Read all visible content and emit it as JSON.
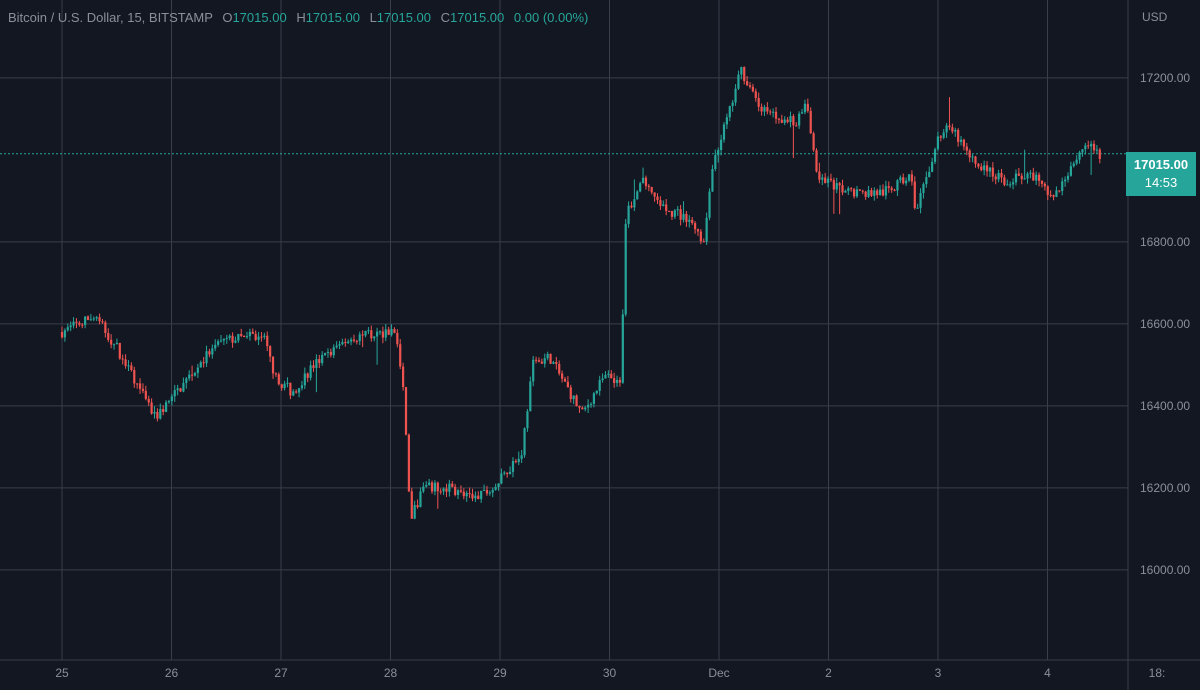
{
  "legend": {
    "symbol": "Bitcoin / U.S. Dollar, 15, BITSTAMP",
    "open_label": "O",
    "open": "17015.00",
    "high_label": "H",
    "high": "17015.00",
    "low_label": "L",
    "low": "17015.00",
    "close_label": "C",
    "close": "17015.00",
    "change": "0.00 (0.00%)"
  },
  "currency": "USD",
  "last_price": {
    "value": "17015.00",
    "countdown": "14:53"
  },
  "colors": {
    "background": "#131722",
    "grid": "#3a3e4a",
    "up": "#26a69a",
    "down": "#ef5350",
    "axis_text": "#8a8f9c",
    "price_tag": "#26a69a"
  },
  "chart_data": {
    "type": "candlestick",
    "x_ticks": [
      "25",
      "26",
      "27",
      "28",
      "29",
      "30",
      "Dec",
      "2",
      "3",
      "4",
      "18:"
    ],
    "y_ticks": [
      "17200.00",
      "16800.00",
      "16600.00",
      "16400.00",
      "16200.00",
      "16000.00"
    ],
    "ylim": [
      15780,
      17390
    ],
    "grid": true,
    "last_price_line": 17015,
    "anchors": [
      [
        0,
        16580
      ],
      [
        0.3,
        16620
      ],
      [
        0.5,
        16540
      ],
      [
        0.85,
        16370
      ],
      [
        1.1,
        16450
      ],
      [
        1.3,
        16520
      ],
      [
        1.5,
        16560
      ],
      [
        1.75,
        16570
      ],
      [
        1.85,
        16560
      ],
      [
        1.95,
        16470
      ],
      [
        2.1,
        16430
      ],
      [
        2.3,
        16500
      ],
      [
        2.6,
        16560
      ],
      [
        2.95,
        16580
      ],
      [
        3.05,
        16580
      ],
      [
        3.13,
        16400
      ],
      [
        3.18,
        16120
      ],
      [
        3.3,
        16200
      ],
      [
        3.55,
        16200
      ],
      [
        3.75,
        16170
      ],
      [
        3.95,
        16200
      ],
      [
        4.2,
        16290
      ],
      [
        4.3,
        16500
      ],
      [
        4.45,
        16520
      ],
      [
        4.6,
        16450
      ],
      [
        4.75,
        16380
      ],
      [
        4.95,
        16470
      ],
      [
        5.1,
        16450
      ],
      [
        5.15,
        16870
      ],
      [
        5.3,
        16950
      ],
      [
        5.5,
        16880
      ],
      [
        5.75,
        16850
      ],
      [
        5.85,
        16790
      ],
      [
        5.95,
        17000
      ],
      [
        6.1,
        17120
      ],
      [
        6.2,
        17220
      ],
      [
        6.4,
        17120
      ],
      [
        6.7,
        17090
      ],
      [
        6.8,
        17140
      ],
      [
        6.9,
        16960
      ],
      [
        7.1,
        16930
      ],
      [
        7.3,
        16920
      ],
      [
        7.5,
        16920
      ],
      [
        7.75,
        16960
      ],
      [
        7.8,
        16870
      ],
      [
        8.0,
        17050
      ],
      [
        8.1,
        17090
      ],
      [
        8.3,
        17000
      ],
      [
        8.6,
        16950
      ],
      [
        8.9,
        16960
      ],
      [
        9.05,
        16900
      ],
      [
        9.2,
        16980
      ],
      [
        9.35,
        17040
      ],
      [
        9.5,
        17010
      ]
    ]
  }
}
